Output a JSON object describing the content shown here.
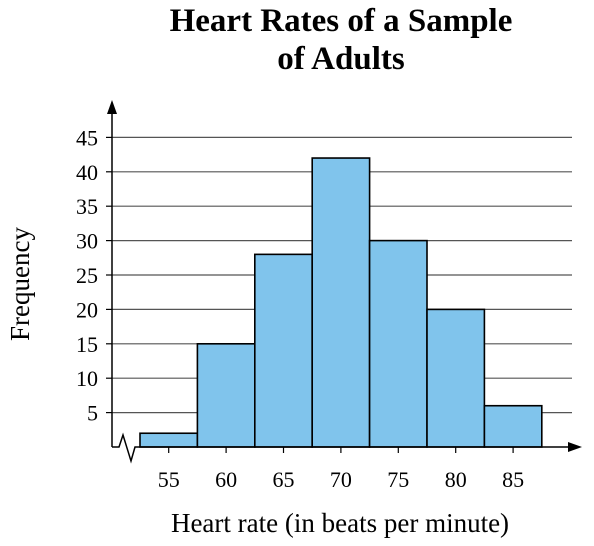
{
  "chart_data": {
    "type": "bar",
    "title_line1": "Heart Rates of a Sample",
    "title_line2": "of Adults",
    "xlabel": "Heart rate (in beats per minute)",
    "ylabel": "Frequency",
    "categories": [
      "55",
      "60",
      "65",
      "70",
      "75",
      "80",
      "85"
    ],
    "values": [
      2,
      15,
      28,
      42,
      30,
      20,
      6
    ],
    "yticks": [
      5,
      10,
      15,
      20,
      25,
      30,
      35,
      40,
      45
    ],
    "ylim": [
      0,
      47
    ],
    "grid": true,
    "bar_color": "#80c4ec",
    "axis_break": true
  }
}
